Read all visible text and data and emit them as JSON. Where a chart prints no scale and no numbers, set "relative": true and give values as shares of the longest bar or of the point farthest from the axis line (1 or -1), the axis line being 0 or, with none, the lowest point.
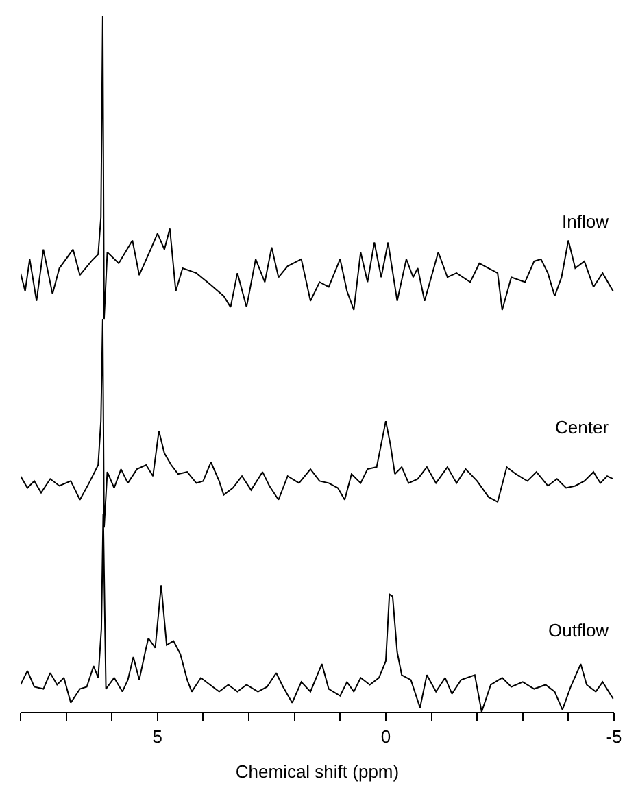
{
  "chart_data": {
    "type": "line",
    "relative": true,
    "xlabel": "Chemical shift (ppm)",
    "xlim": [
      8,
      -5
    ],
    "tick_labels": "x",
    "xticks": [
      {
        "value": 8,
        "label": null
      },
      {
        "value": 7,
        "label": null
      },
      {
        "value": 6,
        "label": null
      },
      5,
      {
        "value": 4,
        "label": null
      },
      {
        "value": 3,
        "label": null
      },
      {
        "value": 2,
        "label": null
      },
      {
        "value": 1,
        "label": null
      },
      0,
      {
        "value": -1,
        "label": null
      },
      {
        "value": -2,
        "label": null
      },
      {
        "value": -3,
        "label": null
      },
      {
        "value": -4,
        "label": null
      },
      -5
    ],
    "series": [
      {
        "name": "Inflow",
        "color": "#000000",
        "x": [
          8.0,
          7.9,
          7.8,
          7.65,
          7.5,
          7.3,
          7.15,
          6.85,
          6.7,
          6.45,
          6.3,
          6.24,
          6.2,
          6.17,
          6.1,
          5.85,
          5.55,
          5.4,
          5.15,
          5.0,
          4.85,
          4.73,
          4.6,
          4.45,
          4.15,
          3.85,
          3.55,
          3.4,
          3.25,
          3.05,
          2.85,
          2.65,
          2.5,
          2.35,
          2.15,
          1.85,
          1.65,
          1.45,
          1.25,
          1.0,
          0.85,
          0.7,
          0.55,
          0.4,
          0.25,
          0.1,
          -0.05,
          -0.25,
          -0.45,
          -0.6,
          -0.7,
          -0.85,
          -1.15,
          -1.35,
          -1.55,
          -1.85,
          -2.05,
          -2.25,
          -2.45,
          -2.55,
          -2.75,
          -3.05,
          -3.25,
          -3.4,
          -3.55,
          -3.7,
          -3.85,
          -4.0,
          -4.15,
          -4.35,
          -4.55,
          -4.75,
          -4.98
        ],
        "values": [
          0.631,
          0.605,
          0.651,
          0.591,
          0.665,
          0.601,
          0.638,
          0.665,
          0.628,
          0.648,
          0.658,
          0.711,
          1.0,
          0.565,
          0.661,
          0.645,
          0.678,
          0.628,
          0.665,
          0.688,
          0.665,
          0.695,
          0.605,
          0.638,
          0.631,
          0.615,
          0.598,
          0.582,
          0.631,
          0.582,
          0.651,
          0.618,
          0.668,
          0.625,
          0.641,
          0.651,
          0.591,
          0.618,
          0.611,
          0.651,
          0.605,
          0.578,
          0.661,
          0.618,
          0.675,
          0.625,
          0.675,
          0.591,
          0.651,
          0.625,
          0.638,
          0.591,
          0.661,
          0.625,
          0.631,
          0.618,
          0.645,
          0.638,
          0.631,
          0.578,
          0.625,
          0.618,
          0.648,
          0.651,
          0.631,
          0.598,
          0.625,
          0.678,
          0.638,
          0.648,
          0.611,
          0.631,
          0.605
        ]
      },
      {
        "name": "Center",
        "color": "#000000",
        "x": [
          8.0,
          7.85,
          7.7,
          7.55,
          7.35,
          7.15,
          6.9,
          6.7,
          6.5,
          6.3,
          6.24,
          6.2,
          6.17,
          6.1,
          5.95,
          5.8,
          5.65,
          5.45,
          5.25,
          5.1,
          4.97,
          4.85,
          4.7,
          4.55,
          4.35,
          4.15,
          4.0,
          3.83,
          3.65,
          3.55,
          3.35,
          3.15,
          2.95,
          2.7,
          2.55,
          2.35,
          2.15,
          1.9,
          1.65,
          1.45,
          1.25,
          1.05,
          0.9,
          0.75,
          0.55,
          0.4,
          0.2,
          0.1,
          0.0,
          -0.1,
          -0.2,
          -0.35,
          -0.5,
          -0.7,
          -0.9,
          -1.1,
          -1.35,
          -1.55,
          -1.75,
          -2.0,
          -2.25,
          -2.45,
          -2.65,
          -2.85,
          -3.1,
          -3.3,
          -3.55,
          -3.75,
          -3.95,
          -4.15,
          -4.35,
          -4.55,
          -4.7,
          -4.85,
          -4.98
        ],
        "values": [
          0.339,
          0.322,
          0.332,
          0.315,
          0.335,
          0.325,
          0.332,
          0.305,
          0.329,
          0.355,
          0.418,
          0.565,
          0.265,
          0.345,
          0.322,
          0.349,
          0.329,
          0.349,
          0.355,
          0.339,
          0.404,
          0.372,
          0.355,
          0.342,
          0.345,
          0.329,
          0.332,
          0.359,
          0.332,
          0.312,
          0.322,
          0.339,
          0.319,
          0.345,
          0.325,
          0.305,
          0.339,
          0.329,
          0.349,
          0.332,
          0.329,
          0.322,
          0.305,
          0.342,
          0.329,
          0.349,
          0.352,
          0.385,
          0.418,
          0.385,
          0.342,
          0.352,
          0.329,
          0.335,
          0.352,
          0.329,
          0.352,
          0.329,
          0.349,
          0.332,
          0.309,
          0.302,
          0.352,
          0.342,
          0.332,
          0.345,
          0.325,
          0.335,
          0.322,
          0.325,
          0.332,
          0.345,
          0.329,
          0.339,
          0.335
        ]
      },
      {
        "name": "Outflow",
        "color": "#000000",
        "x": [
          8.0,
          7.85,
          7.7,
          7.5,
          7.35,
          7.2,
          7.05,
          6.9,
          6.7,
          6.55,
          6.4,
          6.3,
          6.23,
          6.19,
          6.13,
          5.95,
          5.77,
          5.65,
          5.53,
          5.4,
          5.27,
          5.2,
          5.05,
          4.92,
          4.8,
          4.65,
          4.5,
          4.35,
          4.25,
          4.05,
          3.85,
          3.65,
          3.45,
          3.25,
          3.05,
          2.8,
          2.6,
          2.4,
          2.25,
          2.05,
          1.85,
          1.65,
          1.4,
          1.25,
          1.0,
          0.85,
          0.7,
          0.55,
          0.35,
          0.15,
          0.0,
          -0.08,
          -0.15,
          -0.25,
          -0.35,
          -0.55,
          -0.75,
          -0.9,
          -1.1,
          -1.3,
          -1.45,
          -1.65,
          -1.95,
          -2.1,
          -2.3,
          -2.55,
          -2.75,
          -3.0,
          -3.25,
          -3.5,
          -3.7,
          -3.87,
          -4.05,
          -4.27,
          -4.4,
          -4.6,
          -4.75,
          -4.98
        ],
        "values": [
          0.039,
          0.059,
          0.036,
          0.033,
          0.056,
          0.039,
          0.049,
          0.013,
          0.033,
          0.036,
          0.066,
          0.049,
          0.119,
          0.285,
          0.033,
          0.049,
          0.029,
          0.046,
          0.079,
          0.046,
          0.086,
          0.106,
          0.092,
          0.182,
          0.096,
          0.102,
          0.083,
          0.046,
          0.029,
          0.049,
          0.039,
          0.029,
          0.039,
          0.029,
          0.039,
          0.029,
          0.036,
          0.056,
          0.036,
          0.013,
          0.043,
          0.029,
          0.069,
          0.033,
          0.023,
          0.043,
          0.029,
          0.049,
          0.039,
          0.049,
          0.073,
          0.169,
          0.166,
          0.086,
          0.053,
          0.046,
          0.006,
          0.053,
          0.029,
          0.049,
          0.026,
          0.046,
          0.053,
          0.0,
          0.039,
          0.049,
          0.036,
          0.043,
          0.033,
          0.039,
          0.029,
          0.003,
          0.036,
          0.069,
          0.039,
          0.029,
          0.043,
          0.019
        ]
      }
    ]
  }
}
